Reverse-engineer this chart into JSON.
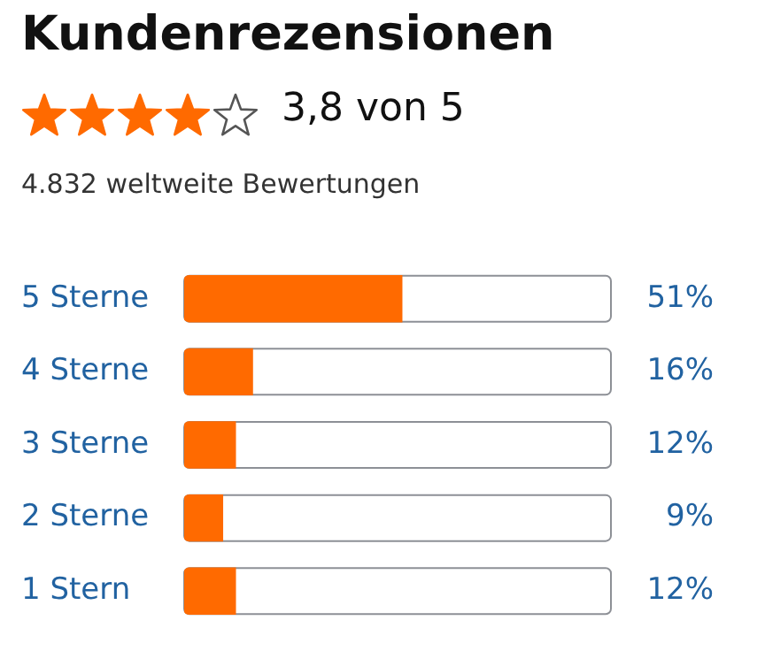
{
  "chart_data": {
    "type": "bar",
    "orientation": "horizontal",
    "title": "Kundenrezensionen",
    "subtitle": "3,8 von 5",
    "annotations": [
      "4.832 weltweite Bewertungen"
    ],
    "categories": [
      "5 Sterne",
      "4 Sterne",
      "3 Sterne",
      "2 Sterne",
      "1 Stern"
    ],
    "values": [
      51,
      16,
      12,
      9,
      12
    ],
    "color": "#ff6a00",
    "value_labels": [
      "51%",
      "16%",
      "12%",
      "9%",
      "12%"
    ],
    "xlim": [
      0,
      100
    ],
    "grid": false,
    "legend": false
  }
}
